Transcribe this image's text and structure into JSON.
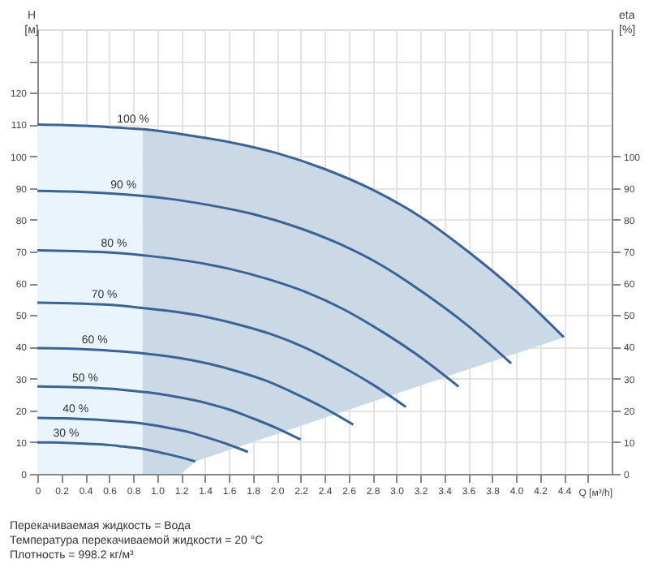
{
  "chart_data": {
    "type": "line",
    "xlabel": "Q [м³/h]",
    "ylabel": "H [м]",
    "y2label": "eta [%]",
    "xlim": [
      0,
      4.8
    ],
    "xticks": [
      0,
      0.2,
      0.4,
      0.6,
      0.8,
      {
        "value": 1,
        "label": "1.0"
      },
      1.2,
      1.4,
      1.6,
      1.8,
      {
        "value": 2,
        "label": "2.0"
      },
      2.2,
      2.4,
      2.6,
      2.8,
      {
        "value": 3,
        "label": "3.0"
      },
      3.2,
      3.4,
      3.6,
      3.8,
      {
        "value": 4,
        "label": "4.0"
      },
      4.2,
      4.4,
      {
        "value": 4.6,
        "label": null
      }
    ],
    "ylim": [
      0,
      140
    ],
    "yticks": [
      0,
      10,
      20,
      30,
      40,
      50,
      60,
      70,
      80,
      90,
      100,
      110,
      120,
      {
        "value": 130,
        "label": null
      }
    ],
    "y2lim": [
      0,
      140
    ],
    "y2ticks": [
      0,
      10,
      20,
      30,
      40,
      50,
      60,
      70,
      80,
      90,
      100
    ],
    "grid": true,
    "marker": "none",
    "line_style": "solid",
    "series": [
      {
        "type": "area",
        "color": "#eaf4fc",
        "x": [
          0,
          0.4,
          0.8,
          0.88
        ],
        "values": [
          110,
          109.6,
          108.7,
          108.5
        ]
      },
      {
        "name": "100 %",
        "color": "#3b6396",
        "x": [
          0,
          0.4,
          0.8,
          0.88,
          1.2,
          1.32,
          1.6,
          2.0,
          2.4,
          2.8,
          3.2,
          3.6,
          4.0,
          4.4
        ],
        "values": [
          110,
          109.6,
          108.7,
          108.5,
          107,
          106.3,
          104.5,
          101,
          96,
          89.5,
          81,
          70,
          57.5,
          43
        ],
        "lower": [
          null,
          null,
          null,
          0,
          0,
          3.9,
          7.5,
          12.5,
          17.6,
          22.7,
          27.8,
          32.9,
          37.9,
          43
        ],
        "upper": [
          null,
          null,
          null,
          108.5,
          107,
          106.3,
          104.5,
          101,
          96,
          89.5,
          81,
          70,
          57.5,
          43
        ]
      },
      {
        "name": "90 %",
        "color": "#3b6396",
        "x": [
          0,
          0.36,
          0.72,
          1.08,
          1.44,
          1.8,
          2.16,
          2.52,
          2.88,
          3.24,
          3.6,
          3.96
        ],
        "values": [
          89.1,
          88.8,
          88.0,
          86.7,
          84.6,
          81.8,
          77.8,
          72.5,
          65.6,
          56.7,
          46.6,
          34.8
        ]
      },
      {
        "name": "80 %",
        "color": "#3b6396",
        "x": [
          0,
          0.32,
          0.64,
          0.96,
          1.28,
          1.6,
          1.92,
          2.24,
          2.56,
          2.88,
          3.2,
          3.52
        ],
        "values": [
          70.4,
          70.1,
          69.6,
          68.5,
          66.9,
          64.6,
          61.4,
          57.3,
          51.8,
          44.8,
          36.8,
          27.5
        ]
      },
      {
        "name": "70 %",
        "color": "#3b6396",
        "x": [
          0,
          0.28,
          0.56,
          0.84,
          1.12,
          1.4,
          1.68,
          1.96,
          2.24,
          2.52,
          2.8,
          3.08
        ],
        "values": [
          53.9,
          53.7,
          53.3,
          52.4,
          51.2,
          49.5,
          47.0,
          43.9,
          39.7,
          34.3,
          28.2,
          21.1
        ]
      },
      {
        "name": "60 %",
        "color": "#3b6396",
        "x": [
          0,
          0.24,
          0.48,
          0.72,
          0.96,
          1.2,
          1.44,
          1.68,
          1.92,
          2.16,
          2.4,
          2.64
        ],
        "values": [
          39.6,
          39.5,
          39.1,
          38.5,
          37.6,
          36.4,
          34.6,
          32.2,
          29.2,
          25.2,
          20.7,
          15.5
        ]
      },
      {
        "name": "50 %",
        "color": "#3b6396",
        "x": [
          0,
          0.2,
          0.4,
          0.6,
          0.8,
          1.0,
          1.2,
          1.4,
          1.6,
          1.8,
          2.0,
          2.2
        ],
        "values": [
          27.5,
          27.4,
          27.2,
          26.8,
          26.1,
          25.3,
          24,
          22.4,
          20.3,
          17.5,
          14.4,
          10.8
        ]
      },
      {
        "name": "40 %",
        "color": "#3b6396",
        "x": [
          0,
          0.16,
          0.32,
          0.48,
          0.64,
          0.8,
          0.96,
          1.12,
          1.28,
          1.44,
          1.6,
          1.76
        ],
        "values": [
          17.6,
          17.5,
          17.4,
          17.1,
          16.7,
          16.2,
          15.4,
          14.3,
          13,
          11.2,
          9.2,
          6.9
        ]
      },
      {
        "name": "30 %",
        "color": "#3b6396",
        "x": [
          0,
          0.12,
          0.24,
          0.36,
          0.48,
          0.6,
          0.72,
          0.84,
          0.96,
          1.08,
          1.2,
          1.32
        ],
        "values": [
          9.9,
          9.9,
          9.8,
          9.6,
          9.4,
          9.1,
          8.6,
          8.1,
          7.3,
          6.3,
          5.2,
          3.9
        ]
      }
    ],
    "annotations": [
      "Перекачиваемая жидкость = Вода",
      "Температура перекачиваемой жидкости = 20 °C",
      "Плотность = 998.2 кг/м³"
    ]
  }
}
